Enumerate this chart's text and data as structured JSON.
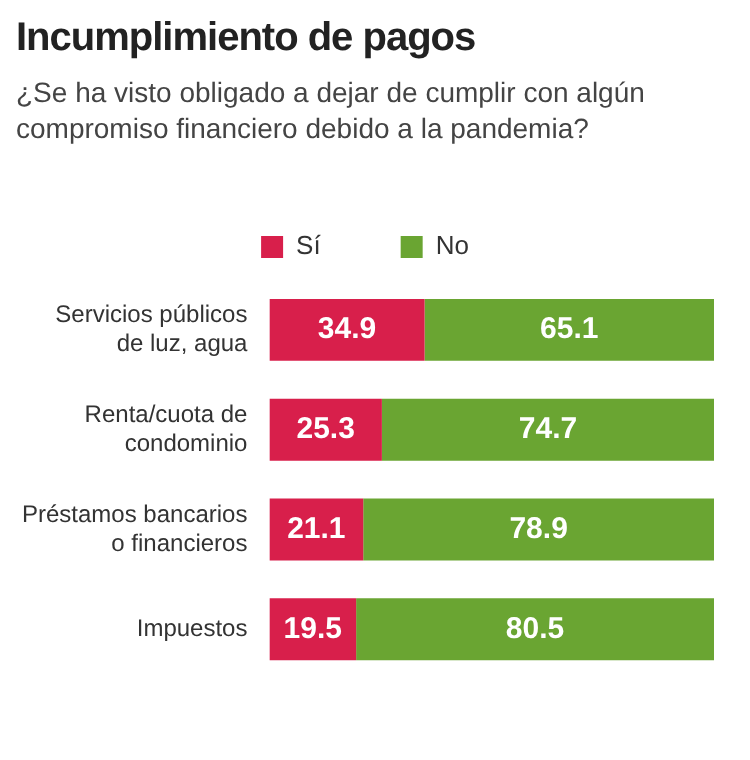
{
  "chart_data": {
    "type": "bar",
    "title": "Incumplimiento de pagos",
    "subtitle": "¿Se ha visto obligado a dejar de cumplir con algún compromiso financiero debido a la pandemia?",
    "orientation": "horizontal",
    "stacked": true,
    "data_labels": true,
    "legend": "top",
    "grid": false,
    "tick_labels": "y",
    "xlim": [
      0,
      100
    ],
    "categories": [
      "Servicios públicos de luz, agua",
      "Renta/cuota de condominio",
      "Préstamos bancarios o financieros",
      "Impuestos"
    ],
    "series": [
      {
        "name": "Sí",
        "color": "#d81f4b",
        "values": [
          34.9,
          25.3,
          21.1,
          19.5
        ]
      },
      {
        "name": "No",
        "color": "#6aa532",
        "values": [
          65.1,
          74.7,
          78.9,
          80.5
        ]
      }
    ]
  }
}
